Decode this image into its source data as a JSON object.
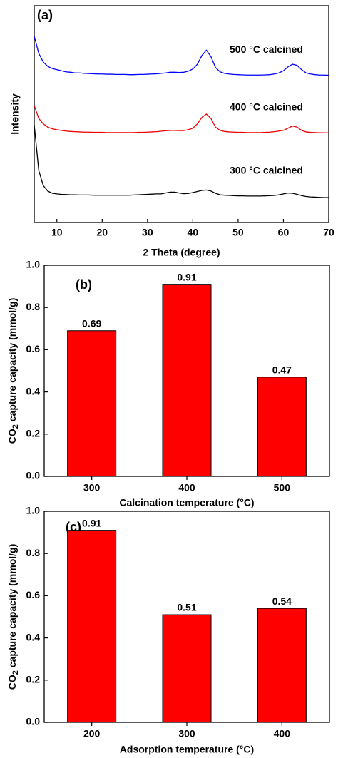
{
  "chart_data": [
    {
      "type": "line",
      "label": "(a)",
      "xlabel": "2 Theta (degree)",
      "ylabel": "Intensity",
      "xlim": [
        5,
        70
      ],
      "ylim": [
        0,
        100
      ],
      "xticks": [
        10,
        20,
        30,
        40,
        50,
        60,
        70
      ],
      "x": [
        5,
        6,
        7,
        8,
        9,
        10,
        11,
        12,
        13,
        14,
        15,
        16,
        17,
        18,
        19,
        20,
        21,
        22,
        23,
        24,
        25,
        26,
        27,
        28,
        29,
        30,
        31,
        32,
        33,
        34,
        35,
        36,
        37,
        38,
        39,
        40,
        41,
        42,
        43,
        44,
        45,
        46,
        47,
        48,
        49,
        50,
        51,
        52,
        53,
        54,
        55,
        56,
        57,
        58,
        59,
        60,
        61,
        62,
        63,
        64,
        65,
        66,
        67,
        68,
        69,
        70
      ],
      "series": [
        {
          "name": "500 °C calcined",
          "color": "#0000ff",
          "values": [
            86,
            78,
            74,
            72,
            71,
            70.5,
            70,
            69.5,
            69.3,
            69,
            69,
            68.8,
            68.7,
            68.6,
            68.5,
            68.5,
            68.4,
            68.4,
            68.3,
            68.3,
            68.3,
            68.2,
            68.2,
            68.3,
            68.3,
            68.4,
            68.5,
            68.6,
            68.8,
            69,
            69.3,
            69.3,
            69.2,
            69.3,
            69.8,
            70.8,
            73,
            77,
            79.5,
            76.5,
            71.5,
            69.5,
            68.8,
            68.5,
            68.3,
            68.2,
            68.1,
            68,
            68,
            68,
            68,
            68.1,
            68.2,
            68.5,
            69,
            70,
            71.8,
            73,
            72.5,
            70.5,
            69,
            68.5,
            68.2,
            68,
            68,
            67.9
          ]
        },
        {
          "name": "400 °C calcined",
          "color": "#ee0000",
          "values": [
            54,
            48,
            45.5,
            44,
            43.2,
            42.8,
            42.5,
            42.2,
            42,
            41.9,
            41.8,
            41.7,
            41.7,
            41.6,
            41.6,
            41.6,
            41.5,
            41.5,
            41.5,
            41.5,
            41.5,
            41.5,
            41.5,
            41.6,
            41.6,
            41.7,
            41.8,
            41.9,
            42.1,
            42.3,
            42.5,
            42.5,
            42.4,
            42.4,
            42.8,
            43.5,
            45.5,
            48.5,
            50,
            48,
            44,
            42.5,
            42,
            41.8,
            41.7,
            41.6,
            41.6,
            41.5,
            41.5,
            41.5,
            41.5,
            41.6,
            41.7,
            41.9,
            42.2,
            42.5,
            43.5,
            44.5,
            44,
            42.5,
            41.8,
            41.6,
            41.5,
            41.4,
            41.4,
            41.3
          ]
        },
        {
          "name": "300  °C calcined",
          "color": "#000000",
          "values": [
            45,
            24,
            17,
            14.5,
            13.5,
            13.2,
            13,
            12.9,
            12.8,
            12.8,
            12.7,
            12.7,
            12.7,
            12.6,
            12.6,
            12.6,
            12.6,
            12.6,
            12.6,
            12.6,
            12.6,
            12.6,
            12.7,
            12.8,
            12.9,
            13,
            13.1,
            13.2,
            13.2,
            13.6,
            14,
            14,
            13.6,
            13.3,
            13.4,
            13.8,
            14.3,
            14.8,
            15,
            14.5,
            13.5,
            12.8,
            12.6,
            12.5,
            12.4,
            12.3,
            12.3,
            12.2,
            12.2,
            12.2,
            12.2,
            12.3,
            12.4,
            12.5,
            12.8,
            13.2,
            13.6,
            13.5,
            13,
            12.4,
            12,
            11.8,
            11.7,
            11.6,
            11.5,
            11.5
          ]
        }
      ]
    },
    {
      "type": "bar",
      "label": "(b)",
      "xlabel": "Calcination temperature (°C)",
      "ylabel": [
        "CO",
        "2",
        " capture capacity (mmol/g)"
      ],
      "categories": [
        "300",
        "400",
        "500"
      ],
      "values": [
        0.69,
        0.91,
        0.47
      ],
      "color": "#ff0000",
      "ylim": [
        0,
        1
      ],
      "yticks": [
        {
          "value": 0,
          "label": "0.0"
        },
        0.2,
        0.4,
        0.6,
        0.8,
        {
          "value": 1,
          "label": "1.0"
        }
      ]
    },
    {
      "type": "bar",
      "label": "(c)",
      "xlabel": "Adsorption temperature (°C)",
      "ylabel": [
        "CO",
        "2",
        " capture capacity (mmol/g)"
      ],
      "categories": [
        "200",
        "300",
        "400"
      ],
      "values": [
        0.91,
        0.51,
        0.54
      ],
      "color": "#ff0000",
      "ylim": [
        0,
        1
      ],
      "yticks": [
        {
          "value": 0,
          "label": "0.0"
        },
        0.2,
        0.4,
        0.6,
        0.8,
        {
          "value": 1,
          "label": "1.0"
        }
      ]
    }
  ]
}
